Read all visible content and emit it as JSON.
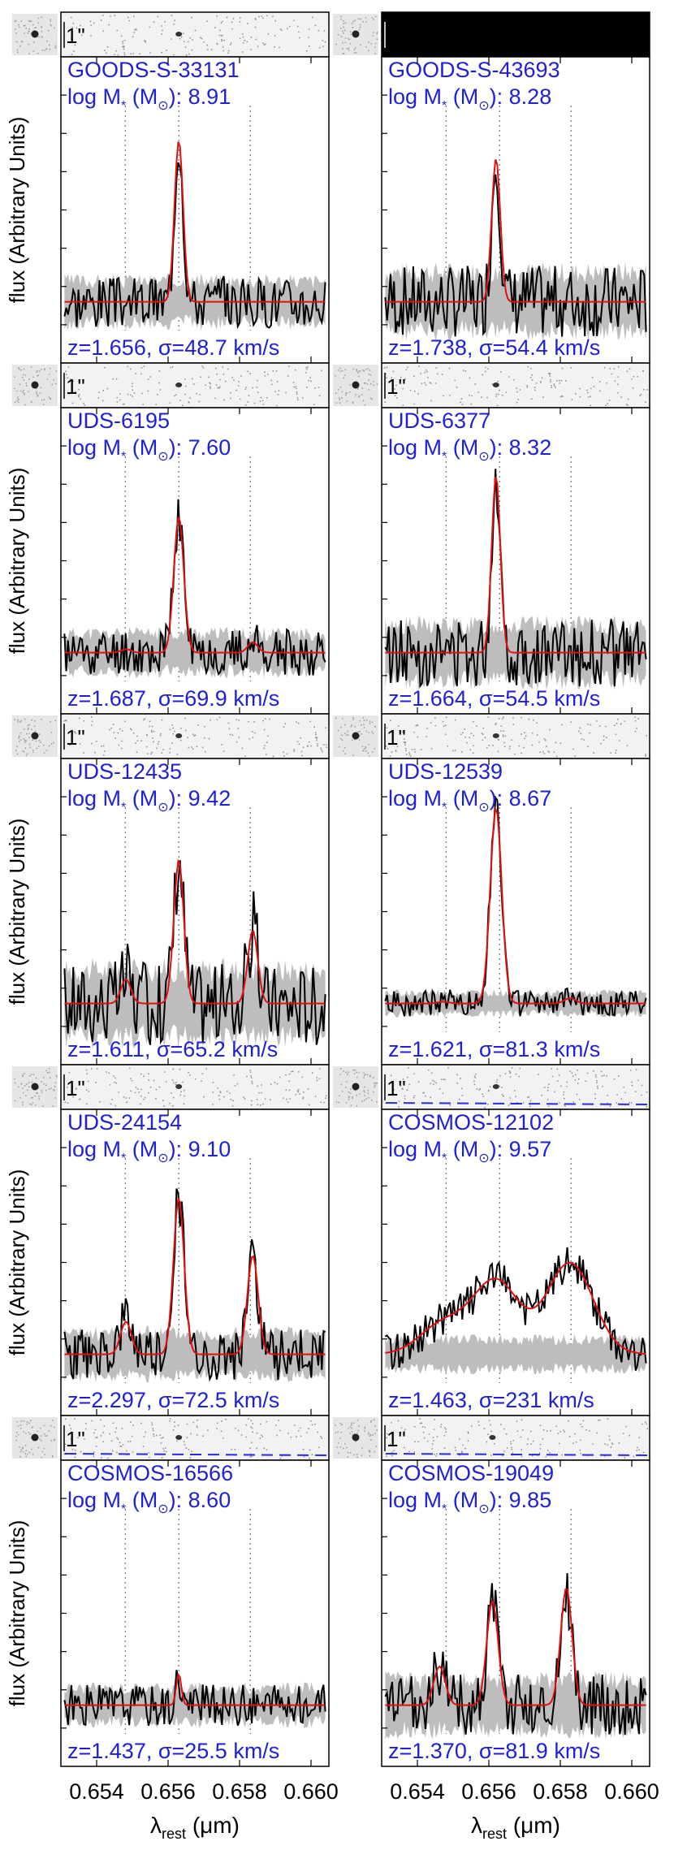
{
  "common": {
    "ylabel": "flux (Arbitrary Units)",
    "xlabel_main": "λ",
    "xlabel_sub": "rest",
    "xlabel_unit": " (μm)",
    "scale_bar_label": "1\"",
    "mass_label_prefix": "log M",
    "mass_label_sub": "*",
    "mass_label_unit": " (M",
    "mass_label_sun": "⊙",
    "mass_label_close": "): "
  },
  "chart_data": {
    "type": "line",
    "xlim": [
      0.653,
      0.6605
    ],
    "x_ticks": [
      "0.654",
      "0.656",
      "0.658",
      "0.660"
    ],
    "x_tick_values": [
      0.654,
      0.656,
      0.658,
      0.66
    ],
    "reference_lines": [
      0.6548,
      0.6563,
      0.6583
    ],
    "panels": [
      {
        "id": "GOODS-S-33131",
        "logM": "8.91",
        "z": "1.656",
        "sigma": "48.7",
        "peak_x": 0.6563,
        "peak_amp": 0.62,
        "width": 0.00012,
        "nii": 0.0,
        "noise": 0.1,
        "seed": 3,
        "blackstrip": false,
        "dashed": false
      },
      {
        "id": "GOODS-S-43693",
        "logM": "8.28",
        "z": "1.738",
        "sigma": "54.4",
        "peak_x": 0.6562,
        "peak_amp": 0.55,
        "width": 0.00012,
        "nii": 0.0,
        "noise": 0.14,
        "seed": 7,
        "blackstrip": true,
        "dashed": false
      },
      {
        "id": "UDS-6195",
        "logM": "7.60",
        "z": "1.687",
        "sigma": "69.9",
        "peak_x": 0.6563,
        "peak_amp": 0.52,
        "width": 0.00014,
        "nii": 0.04,
        "noise": 0.09,
        "seed": 11,
        "blackstrip": false,
        "dashed": false
      },
      {
        "id": "UDS-6377",
        "logM": "8.32",
        "z": "1.664",
        "sigma": "54.5",
        "peak_x": 0.6562,
        "peak_amp": 0.68,
        "width": 0.00012,
        "nii": 0.0,
        "noise": 0.13,
        "seed": 13,
        "blackstrip": false,
        "dashed": false
      },
      {
        "id": "UDS-12435",
        "logM": "9.42",
        "z": "1.611",
        "sigma": "65.2",
        "peak_x": 0.6563,
        "peak_amp": 0.55,
        "width": 0.00014,
        "nii": 0.28,
        "noise": 0.16,
        "seed": 17,
        "blackstrip": false,
        "dashed": false
      },
      {
        "id": "UDS-12539",
        "logM": "8.67",
        "z": "1.621",
        "sigma": "81.3",
        "peak_x": 0.6562,
        "peak_amp": 0.75,
        "width": 0.00016,
        "nii": 0.02,
        "noise": 0.05,
        "seed": 19,
        "blackstrip": false,
        "dashed": false
      },
      {
        "id": "UDS-24154",
        "logM": "9.10",
        "z": "2.297",
        "sigma": "72.5",
        "peak_x": 0.6563,
        "peak_amp": 0.6,
        "width": 0.00015,
        "nii": 0.38,
        "noise": 0.1,
        "seed": 23,
        "blackstrip": false,
        "dashed": false
      },
      {
        "id": "COSMOS-12102",
        "logM": "9.57",
        "z": "1.463",
        "sigma": "231",
        "peak_x": 0.6562,
        "peak_amp": 0.28,
        "width": 0.00065,
        "nii": 0.35,
        "noise": 0.07,
        "seed": 29,
        "blackstrip": false,
        "dashed": true
      },
      {
        "id": "COSMOS-16566",
        "logM": "8.60",
        "z": "1.437",
        "sigma": "25.5",
        "peak_x": 0.6563,
        "peak_amp": 0.12,
        "width": 7e-05,
        "nii": 0.0,
        "noise": 0.08,
        "seed": 31,
        "blackstrip": false,
        "dashed": true
      },
      {
        "id": "COSMOS-19049",
        "logM": "9.85",
        "z": "1.370",
        "sigma": "81.9",
        "peak_x": 0.6561,
        "peak_amp": 0.4,
        "width": 0.00016,
        "nii": 0.45,
        "noise": 0.12,
        "seed": 37,
        "blackstrip": false,
        "dashed": true
      }
    ]
  }
}
